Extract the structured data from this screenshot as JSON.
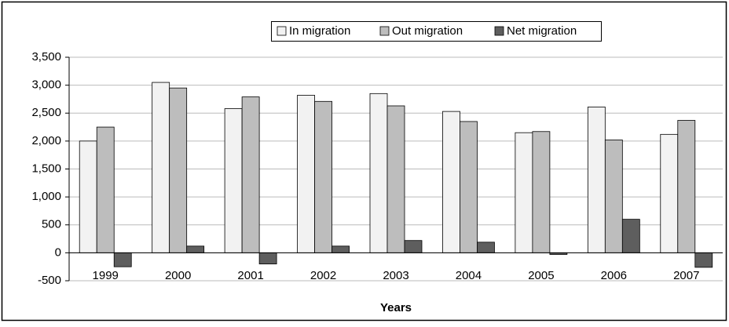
{
  "chart_data": {
    "type": "bar",
    "x_label": "Years",
    "categories": [
      "1999",
      "2000",
      "2001",
      "2002",
      "2003",
      "2004",
      "2005",
      "2006",
      "2007"
    ],
    "series": [
      {
        "name": "In migration",
        "color": "#f2f2f2",
        "values": [
          2000,
          3050,
          2580,
          2820,
          2850,
          2530,
          2150,
          2610,
          2120
        ]
      },
      {
        "name": "Out migration",
        "color": "#bdbdbd",
        "values": [
          2250,
          2950,
          2790,
          2710,
          2630,
          2350,
          2170,
          2020,
          2370
        ]
      },
      {
        "name": "Net migration",
        "color": "#5e5e5e",
        "values": [
          -250,
          120,
          -200,
          120,
          220,
          190,
          -30,
          600,
          -260
        ]
      }
    ],
    "ylim": [
      -500,
      3500
    ],
    "yticks": [
      {
        "value": -500,
        "label": "-500"
      },
      0,
      500,
      {
        "value": 1000,
        "label": "1,000"
      },
      {
        "value": 1500,
        "label": "1,500"
      },
      {
        "value": 2000,
        "label": "2,000"
      },
      {
        "value": 2500,
        "label": "2,500"
      },
      {
        "value": 3000,
        "label": "3,000"
      },
      {
        "value": 3500,
        "label": "3,500"
      }
    ],
    "grid": true,
    "legend": "top"
  }
}
